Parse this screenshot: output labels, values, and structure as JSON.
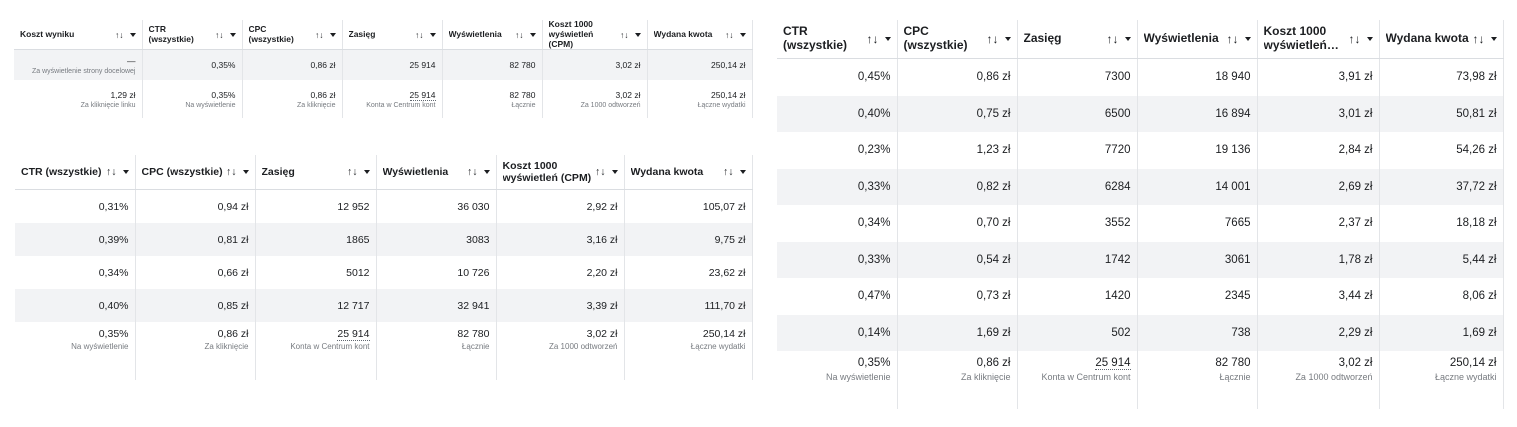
{
  "sort_glyph": "↑↓",
  "table_a": {
    "headers": [
      "Koszt wyniku",
      "CTR (wszystkie)",
      "CPC (wszystkie)",
      "Zasięg",
      "Wyświetlenia",
      "Koszt 1000 wyświetleń (CPM)",
      "Wydana kwota"
    ],
    "row1": [
      "—",
      "0,35%",
      "0,86 zł",
      "25 914",
      "82 780",
      "3,02 zł",
      "250,14 zł"
    ],
    "row1_note": "Za wyświetlenie strony docelowej",
    "totals": [
      "1,29 zł",
      "0,35%",
      "0,86 zł",
      "25 914",
      "82 780",
      "3,02 zł",
      "250,14 zł"
    ],
    "totals_sub": [
      "Za kliknięcie linku",
      "Na wyświetlenie",
      "Za kliknięcie",
      "Konta w Centrum kont",
      "Łącznie",
      "Za 1000 odtworzeń",
      "Łączne wydatki"
    ]
  },
  "table_b": {
    "headers": [
      "CTR (wszystkie)",
      "CPC (wszystkie)",
      "Zasięg",
      "Wyświetlenia",
      "Koszt 1000 wyświetleń (CPM)",
      "Wydana kwota"
    ],
    "rows": [
      [
        "0,31%",
        "0,94 zł",
        "12 952",
        "36 030",
        "2,92 zł",
        "105,07 zł"
      ],
      [
        "0,39%",
        "0,81 zł",
        "1865",
        "3083",
        "3,16 zł",
        "9,75 zł"
      ],
      [
        "0,34%",
        "0,66 zł",
        "5012",
        "10 726",
        "2,20 zł",
        "23,62 zł"
      ],
      [
        "0,40%",
        "0,85 zł",
        "12 717",
        "32 941",
        "3,39 zł",
        "111,70 zł"
      ]
    ],
    "totals": [
      "0,35%",
      "0,86 zł",
      "25 914",
      "82 780",
      "3,02 zł",
      "250,14 zł"
    ],
    "totals_sub": [
      "Na wyświetlenie",
      "Za kliknięcie",
      "Konta w Centrum kont",
      "Łącznie",
      "Za 1000 odtworzeń",
      "Łączne wydatki"
    ]
  },
  "table_c": {
    "headers": [
      "CTR (wszystkie)",
      "CPC (wszystkie)",
      "Zasięg",
      "Wyświetlenia",
      "Koszt 1000 wyświetleń…",
      "Wydana kwota"
    ],
    "rows": [
      [
        "0,45%",
        "0,86 zł",
        "7300",
        "18 940",
        "3,91 zł",
        "73,98 zł"
      ],
      [
        "0,40%",
        "0,75 zł",
        "6500",
        "16 894",
        "3,01 zł",
        "50,81 zł"
      ],
      [
        "0,23%",
        "1,23 zł",
        "7720",
        "19 136",
        "2,84 zł",
        "54,26 zł"
      ],
      [
        "0,33%",
        "0,82 zł",
        "6284",
        "14 001",
        "2,69 zł",
        "37,72 zł"
      ],
      [
        "0,34%",
        "0,70 zł",
        "3552",
        "7665",
        "2,37 zł",
        "18,18 zł"
      ],
      [
        "0,33%",
        "0,54 zł",
        "1742",
        "3061",
        "1,78 zł",
        "5,44 zł"
      ],
      [
        "0,47%",
        "0,73 zł",
        "1420",
        "2345",
        "3,44 zł",
        "8,06 zł"
      ],
      [
        "0,14%",
        "1,69 zł",
        "502",
        "738",
        "2,29 zł",
        "1,69 zł"
      ]
    ],
    "totals": [
      "0,35%",
      "0,86 zł",
      "25 914",
      "82 780",
      "3,02 zł",
      "250,14 zł"
    ],
    "totals_sub": [
      "Na wyświetlenie",
      "Za kliknięcie",
      "Konta w Centrum kont",
      "Łącznie",
      "Za 1000 odtworzeń",
      "Łączne wydatki"
    ]
  }
}
